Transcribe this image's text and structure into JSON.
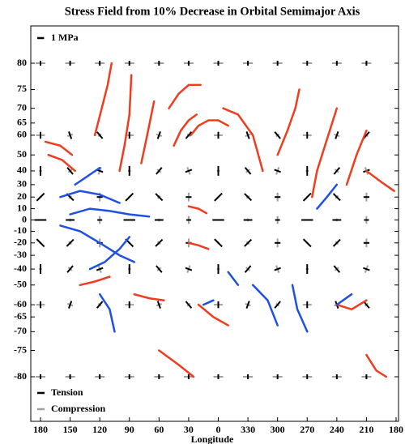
{
  "chart_data": {
    "type": "stress-map",
    "title": "Stress Field from 10% Decrease in Orbital Semimajor Axis",
    "xlabel": "Longitude",
    "xlim": [
      180,
      -180
    ],
    "xticks": [
      180,
      150,
      120,
      90,
      60,
      30,
      0,
      {
        "value": -30,
        "label": "330"
      },
      {
        "value": -60,
        "label": "300"
      },
      {
        "value": -90,
        "label": "270"
      },
      {
        "value": -120,
        "label": "240"
      },
      {
        "value": -150,
        "label": "210"
      },
      {
        "value": -180,
        "label": "180"
      }
    ],
    "ylim": [
      -80,
      80
    ],
    "yscale": "mercator",
    "yticks": [
      80,
      75,
      70,
      65,
      60,
      50,
      40,
      30,
      20,
      10,
      0,
      -10,
      -20,
      -30,
      -40,
      -50,
      -60,
      -65,
      -70,
      -75,
      -80
    ],
    "scale_bar": {
      "value": 1,
      "label": "1 MPa"
    },
    "legend": [
      {
        "name": "Tension",
        "color": "#000000"
      },
      {
        "name": "Compression",
        "color": "#a0a0a0"
      }
    ],
    "stress": {
      "lon": [
        180,
        150,
        120,
        90,
        60,
        30,
        0,
        -30,
        -60,
        -90,
        -120,
        -150
      ],
      "lat": [
        80,
        60,
        40,
        20,
        0,
        -20,
        -40,
        -60,
        -80
      ],
      "tension": [
        [
          0.5,
          0.5,
          0.5,
          0.5,
          0.5,
          0.5,
          0.5,
          0.5,
          0.5,
          0.5,
          0.5,
          0.5
        ],
        [
          0.7,
          0.8,
          0.9,
          0.7,
          0.8,
          0.9,
          0.7,
          0.8,
          0.9,
          0.7,
          0.8,
          0.9
        ],
        [
          1.0,
          0.9,
          0.7,
          1.0,
          0.9,
          0.7,
          1.0,
          0.9,
          0.7,
          1.0,
          0.9,
          0.7
        ],
        [
          1.1,
          1.0,
          0.6,
          1.1,
          1.0,
          0.6,
          1.1,
          1.0,
          0.6,
          1.1,
          1.0,
          0.6
        ],
        [
          1.2,
          0.9,
          0.5,
          1.2,
          0.9,
          0.5,
          1.2,
          0.9,
          0.5,
          1.2,
          0.9,
          0.5
        ],
        [
          1.1,
          1.0,
          0.6,
          1.1,
          1.0,
          0.6,
          1.1,
          1.0,
          0.6,
          1.1,
          1.0,
          0.6
        ],
        [
          1.0,
          0.9,
          0.7,
          1.0,
          0.9,
          0.7,
          1.0,
          0.9,
          0.7,
          1.0,
          0.9,
          0.7
        ],
        [
          0.7,
          0.8,
          0.9,
          0.7,
          0.8,
          0.9,
          0.7,
          0.8,
          0.9,
          0.7,
          0.8,
          0.9
        ],
        [
          0.5,
          0.5,
          0.5,
          0.5,
          0.5,
          0.5,
          0.5,
          0.5,
          0.5,
          0.5,
          0.5,
          0.5
        ]
      ],
      "compression": [
        [
          1.0,
          1.0,
          1.0,
          1.0,
          1.0,
          1.0,
          1.0,
          1.0,
          1.0,
          1.0,
          1.0,
          1.0
        ],
        [
          0.9,
          0.6,
          0.4,
          0.9,
          0.6,
          0.4,
          0.9,
          0.6,
          0.4,
          0.9,
          0.6,
          0.4
        ],
        [
          0.3,
          0.5,
          0.8,
          0.3,
          0.5,
          0.8,
          0.3,
          0.5,
          0.8,
          0.3,
          0.5,
          0.8
        ],
        [
          0.2,
          0.4,
          0.9,
          0.2,
          0.4,
          0.9,
          0.2,
          0.4,
          0.9,
          0.2,
          0.4,
          0.9
        ],
        [
          0.1,
          0.3,
          0.8,
          0.1,
          0.3,
          0.8,
          0.1,
          0.3,
          0.8,
          0.1,
          0.3,
          0.8
        ],
        [
          0.2,
          0.4,
          0.9,
          0.2,
          0.4,
          0.9,
          0.2,
          0.4,
          0.9,
          0.2,
          0.4,
          0.9
        ],
        [
          0.3,
          0.5,
          0.8,
          0.3,
          0.5,
          0.8,
          0.3,
          0.5,
          0.8,
          0.3,
          0.5,
          0.8
        ],
        [
          0.9,
          0.6,
          0.4,
          0.9,
          0.6,
          0.4,
          0.9,
          0.6,
          0.4,
          0.9,
          0.6,
          0.4
        ],
        [
          1.0,
          1.0,
          1.0,
          1.0,
          1.0,
          1.0,
          1.0,
          1.0,
          1.0,
          1.0,
          1.0,
          1.0
        ]
      ],
      "angle": [
        [
          90,
          90,
          90,
          90,
          90,
          90,
          90,
          90,
          90,
          90,
          90,
          90
        ],
        [
          90,
          110,
          130,
          90,
          70,
          50,
          90,
          110,
          130,
          90,
          70,
          50
        ],
        [
          90,
          130,
          160,
          90,
          50,
          20,
          90,
          130,
          160,
          90,
          50,
          20
        ],
        [
          45,
          135,
          0,
          45,
          135,
          0,
          45,
          135,
          0,
          45,
          135,
          0
        ],
        [
          0,
          0,
          0,
          0,
          0,
          0,
          0,
          0,
          0,
          0,
          0,
          0
        ],
        [
          135,
          45,
          0,
          135,
          45,
          0,
          135,
          45,
          0,
          135,
          45,
          0
        ],
        [
          90,
          50,
          20,
          90,
          130,
          160,
          90,
          50,
          20,
          90,
          130,
          160
        ],
        [
          90,
          70,
          50,
          90,
          110,
          130,
          90,
          70,
          50,
          90,
          110,
          130
        ],
        [
          90,
          90,
          90,
          90,
          90,
          90,
          90,
          90,
          90,
          90,
          90,
          90
        ]
      ]
    },
    "lineament_groups": [
      {
        "color": "#ee3d1e",
        "lines": [
          {
            "lon": [
              175,
              160,
              148
            ],
            "lat": [
              57,
              55,
              50
            ]
          },
          {
            "lon": [
              172,
              158,
              145
            ],
            "lat": [
              50,
              47,
              40
            ]
          },
          {
            "lon": [
              125,
              118,
              112,
              108
            ],
            "lat": [
              60,
              70,
              76,
              80
            ]
          },
          {
            "lon": [
              100,
              95,
              90,
              88
            ],
            "lat": [
              40,
              55,
              68,
              78
            ]
          },
          {
            "lon": [
              78,
              72,
              65
            ],
            "lat": [
              45,
              60,
              72
            ]
          },
          {
            "lon": [
              50,
              40,
              30,
              18
            ],
            "lat": [
              70,
              74,
              76,
              76
            ]
          },
          {
            "lon": [
              45,
              38,
              30,
              22
            ],
            "lat": [
              55,
              62,
              66,
              68
            ]
          },
          {
            "lon": [
              28,
              20,
              10,
              0,
              -10
            ],
            "lat": [
              60,
              64,
              66,
              66,
              64
            ]
          },
          {
            "lon": [
              -5,
              -20,
              -35,
              -45
            ],
            "lat": [
              70,
              68,
              60,
              40
            ]
          },
          {
            "lon": [
              -60,
              -70,
              -78,
              -82
            ],
            "lat": [
              50,
              62,
              70,
              75
            ]
          },
          {
            "lon": [
              -95,
              -100,
              -110,
              -120
            ],
            "lat": [
              20,
              40,
              58,
              70
            ]
          },
          {
            "lon": [
              -130,
              -140,
              -150
            ],
            "lat": [
              30,
              50,
              62
            ]
          },
          {
            "lon": [
              -150,
              -165,
              -178
            ],
            "lat": [
              40,
              32,
              25
            ]
          },
          {
            "lon": [
              30,
              20,
              12
            ],
            "lat": [
              12,
              10,
              6
            ]
          },
          {
            "lon": [
              30,
              20,
              10
            ],
            "lat": [
              -20,
              -22,
              -25
            ]
          },
          {
            "lon": [
              140,
              125,
              110
            ],
            "lat": [
              -50,
              -48,
              -45
            ]
          },
          {
            "lon": [
              85,
              70,
              55
            ],
            "lat": [
              -55,
              -57,
              -58
            ]
          },
          {
            "lon": [
              20,
              5,
              -10
            ],
            "lat": [
              -60,
              -65,
              -68
            ]
          },
          {
            "lon": [
              60,
              40,
              25
            ],
            "lat": [
              -75,
              -78,
              -80
            ]
          },
          {
            "lon": [
              -150,
              -160,
              -170
            ],
            "lat": [
              -76,
              -79,
              -80
            ]
          },
          {
            "lon": [
              -120,
              -135,
              -150
            ],
            "lat": [
              -60,
              -62,
              -58
            ]
          }
        ]
      },
      {
        "color": "#1f50e6",
        "lines": [
          {
            "lon": [
              160,
              140,
              120,
              100
            ],
            "lat": [
              20,
              25,
              22,
              15
            ]
          },
          {
            "lon": [
              150,
              130,
              110,
              90,
              70
            ],
            "lat": [
              5,
              10,
              8,
              5,
              3
            ]
          },
          {
            "lon": [
              160,
              140,
              120,
              100,
              85
            ],
            "lat": [
              -5,
              -10,
              -20,
              -30,
              -35
            ]
          },
          {
            "lon": [
              130,
              115,
              100,
              90
            ],
            "lat": [
              -40,
              -35,
              -25,
              -15
            ]
          },
          {
            "lon": [
              120,
              110,
              105
            ],
            "lat": [
              -55,
              -62,
              -70
            ]
          },
          {
            "lon": [
              145,
              135,
              120
            ],
            "lat": [
              30,
              35,
              42
            ]
          },
          {
            "lon": [
              -35,
              -50,
              -60
            ],
            "lat": [
              -50,
              -58,
              -68
            ]
          },
          {
            "lon": [
              -75,
              -80,
              -90
            ],
            "lat": [
              -50,
              -62,
              -70
            ]
          },
          {
            "lon": [
              -100,
              -110,
              -120
            ],
            "lat": [
              10,
              20,
              30
            ]
          },
          {
            "lon": [
              -120,
              -135
            ],
            "lat": [
              -60,
              -55
            ]
          },
          {
            "lon": [
              15,
              5
            ],
            "lat": [
              -60,
              -58
            ]
          },
          {
            "lon": [
              -10,
              -20
            ],
            "lat": [
              -42,
              -50
            ]
          }
        ]
      }
    ]
  }
}
